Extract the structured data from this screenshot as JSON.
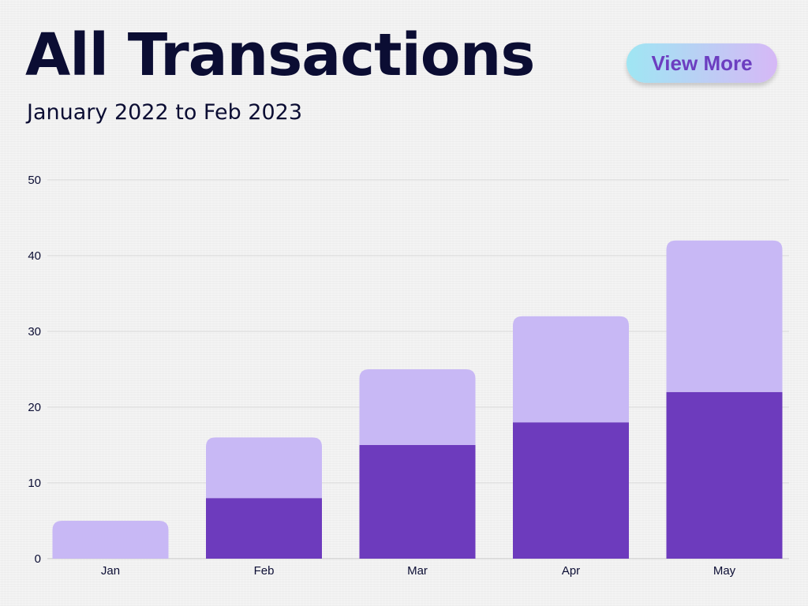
{
  "header": {
    "title": "All Transactions",
    "subtitle": "January 2022 to Feb 2023",
    "view_more_label": "View More"
  },
  "colors": {
    "title": "#0b0d33",
    "bar_light": "#c8b8f5",
    "bar_dark": "#6d3bbd",
    "grid": "#d9d9d9",
    "button_text": "#6c3ec0",
    "button_gradient_start": "#9fe6f3",
    "button_gradient_end": "#d6b8f6"
  },
  "chart_data": {
    "type": "bar",
    "stacked": true,
    "categories": [
      "Jan",
      "Feb",
      "Mar",
      "Apr",
      "May"
    ],
    "series": [
      {
        "values": [
          0,
          8,
          15,
          18,
          22
        ],
        "color": "#6d3bbd"
      },
      {
        "values": [
          5,
          8,
          10,
          14,
          20
        ],
        "color": "#c8b8f5"
      }
    ],
    "totals": [
      5,
      16,
      25,
      32,
      42
    ],
    "ylim": [
      0,
      50
    ],
    "yticks": [
      0,
      10,
      20,
      30,
      40,
      50
    ],
    "grid": true,
    "legend": "none"
  }
}
